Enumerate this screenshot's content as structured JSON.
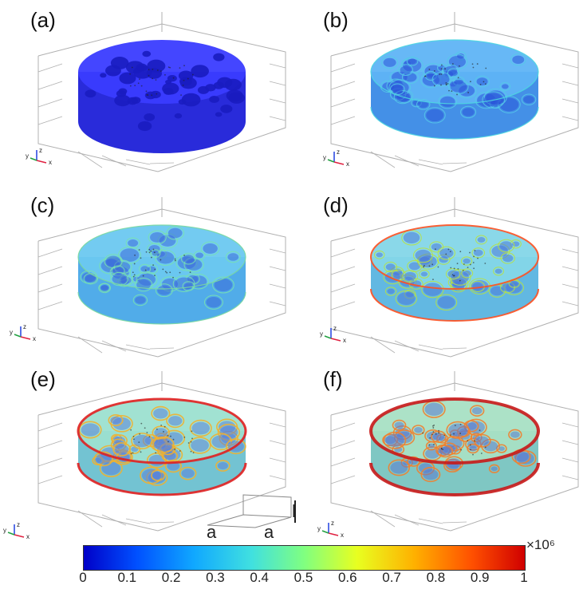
{
  "panels": [
    {
      "label": "(a)"
    },
    {
      "label": "(b)"
    },
    {
      "label": "(c)"
    },
    {
      "label": "(d)"
    },
    {
      "label": "(e)"
    },
    {
      "label": "(f)"
    }
  ],
  "axis_triad": {
    "x": "x",
    "y": "y",
    "z": "z"
  },
  "scale_glyph": {
    "width_a": "a",
    "depth_a": "a",
    "height_l": "l"
  },
  "colorbar": {
    "ticks": [
      "0",
      "0.1",
      "0.2",
      "0.3",
      "0.4",
      "0.5",
      "0.6",
      "0.7",
      "0.8",
      "0.9",
      "1"
    ],
    "exponent_label": "×10⁶",
    "colors": [
      "#0000c8",
      "#0050ff",
      "#10a8ff",
      "#40e0e0",
      "#80ff80",
      "#e8ff20",
      "#ffb000",
      "#ff5000",
      "#d00000"
    ]
  }
}
